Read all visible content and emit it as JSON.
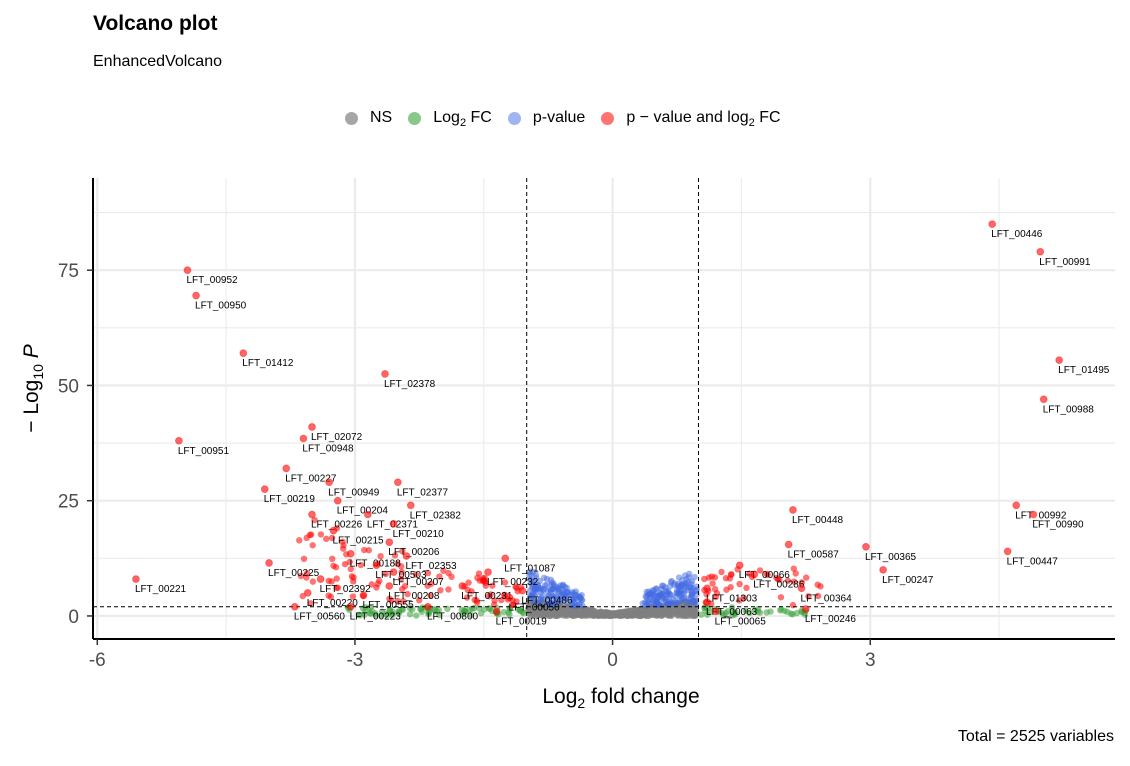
{
  "title": "Volcano plot",
  "subtitle": "EnhancedVolcano",
  "caption": "Total = 2525 variables",
  "legend": [
    {
      "name": "NS",
      "color": "#808080",
      "pre": "NS",
      "sub": "",
      "post": ""
    },
    {
      "name": "log2fc",
      "color": "#3aa33a",
      "pre": "Log",
      "sub": "2",
      "post": " FC"
    },
    {
      "name": "pvalue",
      "color": "#4169e1",
      "pre": "p-value",
      "sub": "",
      "post": ""
    },
    {
      "name": "both",
      "color": "#ff0000",
      "pre": "p − value  and  log",
      "sub": "2",
      "post": " FC"
    }
  ],
  "chart_data": {
    "type": "scatter",
    "xlabel": {
      "pre": "Log",
      "sub": "2",
      "post": " fold change"
    },
    "ylabel": {
      "pre": "− Log",
      "sub": "10",
      "post": " P"
    },
    "xlim": [
      -6.05,
      5.85
    ],
    "ylim": [
      -5,
      95
    ],
    "x_ticks": [
      {
        "v": -6,
        "label": "-6"
      },
      {
        "v": -3,
        "label": "-3"
      },
      {
        "v": 0,
        "label": "0"
      },
      {
        "v": 3,
        "label": "3"
      }
    ],
    "y_ticks": [
      {
        "v": 0,
        "label": "0"
      },
      {
        "v": 25,
        "label": "25"
      },
      {
        "v": 50,
        "label": "50"
      },
      {
        "v": 75,
        "label": "75"
      }
    ],
    "fc_cutoff": 1.0,
    "p_cutoff_neglog10": 2.0,
    "colors": {
      "NS": "#808080",
      "FC": "#3aa33a",
      "P": "#4169e1",
      "FC_P": "#ff0000"
    },
    "labeled_points": [
      {
        "label": "LFT_00446",
        "x": 4.42,
        "y": 85
      },
      {
        "label": "LFT_00991",
        "x": 4.98,
        "y": 79
      },
      {
        "label": "LFT_01495",
        "x": 5.2,
        "y": 55.5
      },
      {
        "label": "LFT_00988",
        "x": 5.02,
        "y": 47
      },
      {
        "label": "LFT_00992",
        "x": 4.7,
        "y": 24
      },
      {
        "label": "LFT_00990",
        "x": 4.9,
        "y": 22
      },
      {
        "label": "LFT_00447",
        "x": 4.6,
        "y": 14
      },
      {
        "label": "LFT_00448",
        "x": 2.1,
        "y": 23
      },
      {
        "label": "LFT_00587",
        "x": 2.05,
        "y": 15.5
      },
      {
        "label": "LFT_00365",
        "x": 2.95,
        "y": 15
      },
      {
        "label": "LFT_00247",
        "x": 3.15,
        "y": 10
      },
      {
        "label": "LFT_00066",
        "x": 1.48,
        "y": 11
      },
      {
        "label": "LFT_00286",
        "x": 1.65,
        "y": 9
      },
      {
        "label": "LFT_01303",
        "x": 1.1,
        "y": 6
      },
      {
        "label": "LFT_00364",
        "x": 2.2,
        "y": 6
      },
      {
        "label": "LFT_00063",
        "x": 1.1,
        "y": 3
      },
      {
        "label": "LFT_00065",
        "x": 1.2,
        "y": 1
      },
      {
        "label": "LFT_00246",
        "x": 2.25,
        "y": 1.5
      },
      {
        "label": "LFT_00952",
        "x": -4.95,
        "y": 75
      },
      {
        "label": "LFT_00950",
        "x": -4.85,
        "y": 69.5
      },
      {
        "label": "LFT_01412",
        "x": -4.3,
        "y": 57
      },
      {
        "label": "LFT_02378",
        "x": -2.65,
        "y": 52.5
      },
      {
        "label": "LFT_02072",
        "x": -3.5,
        "y": 41
      },
      {
        "label": "LFT_00948",
        "x": -3.6,
        "y": 38.5
      },
      {
        "label": "LFT_00951",
        "x": -5.05,
        "y": 38
      },
      {
        "label": "LFT_00227",
        "x": -3.8,
        "y": 32
      },
      {
        "label": "LFT_00949",
        "x": -3.3,
        "y": 29
      },
      {
        "label": "LFT_02377",
        "x": -2.5,
        "y": 29
      },
      {
        "label": "LFT_00219",
        "x": -4.05,
        "y": 27.5
      },
      {
        "label": "LFT_00204",
        "x": -3.2,
        "y": 25
      },
      {
        "label": "LFT_02382",
        "x": -2.35,
        "y": 24
      },
      {
        "label": "LFT_00226",
        "x": -3.5,
        "y": 22
      },
      {
        "label": "LFT_02371",
        "x": -2.85,
        "y": 22
      },
      {
        "label": "LFT_00210",
        "x": -2.55,
        "y": 20
      },
      {
        "label": "LFT_00215",
        "x": -3.25,
        "y": 18.5
      },
      {
        "label": "LFT_00206",
        "x": -2.6,
        "y": 16
      },
      {
        "label": "LFT_02353",
        "x": -2.4,
        "y": 13
      },
      {
        "label": "LFT_00188",
        "x": -3.05,
        "y": 13.5
      },
      {
        "label": "LFT_01087",
        "x": -1.25,
        "y": 12.5
      },
      {
        "label": "LFT_00503",
        "x": -2.75,
        "y": 11
      },
      {
        "label": "LFT_00225",
        "x": -4,
        "y": 11.5
      },
      {
        "label": "LFT_00207",
        "x": -2.55,
        "y": 9.5
      },
      {
        "label": "LFT_00232",
        "x": -1.45,
        "y": 9.5
      },
      {
        "label": "LFT_02392",
        "x": -3.4,
        "y": 8
      },
      {
        "label": "LFT_00221",
        "x": -5.55,
        "y": 8
      },
      {
        "label": "LFT_00208",
        "x": -2.6,
        "y": 6.5
      },
      {
        "label": "LFT_00231",
        "x": -1.75,
        "y": 6.5
      },
      {
        "label": "LFT_00486",
        "x": -1.05,
        "y": 5.5
      },
      {
        "label": "LFT_00220",
        "x": -3.55,
        "y": 5
      },
      {
        "label": "LFT_00555",
        "x": -2.9,
        "y": 4.5
      },
      {
        "label": "LFT_00050",
        "x": -1.2,
        "y": 4
      },
      {
        "label": "LFT_00560",
        "x": -3.7,
        "y": 2
      },
      {
        "label": "LFT_00223",
        "x": -3.05,
        "y": 2
      },
      {
        "label": "LFT_00800",
        "x": -2.15,
        "y": 2
      },
      {
        "label": "LFT_00019",
        "x": -1.35,
        "y": 1
      }
    ]
  }
}
